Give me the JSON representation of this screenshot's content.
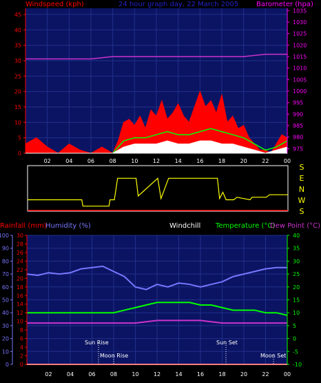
{
  "top": {
    "left_label": "Windspeed (kph)",
    "center_label": "24 hour graph day, 22 March 2005",
    "right_label": "Barometer (hpa)"
  },
  "bottom": {
    "rain_label": "Rainfall (mm)",
    "humidity_label": "Humidity (%)",
    "windchill_label": "Windchill",
    "temp_label": "Temperature (°C)",
    "dew_label": "Dew Point (°C)",
    "sun_rise": "Sun Rise",
    "moon_rise": "Moon Rise",
    "sun_set": "Sun Set",
    "moon_set": "Moon Set"
  },
  "hours": [
    "02",
    "04",
    "06",
    "08",
    "10",
    "12",
    "14",
    "16",
    "18",
    "20",
    "22",
    "00"
  ],
  "directions": [
    "S",
    "E",
    "N",
    "W",
    "S"
  ],
  "colors": {
    "windspeed": "#ff0000",
    "gust_green": "#00ff00",
    "avg_white": "#ffffff",
    "barometer": "#cc33cc",
    "direction": "#ffff00",
    "humidity": "#7777ff",
    "temperature": "#00ff00",
    "dewpoint": "#cc33cc",
    "rain": "#ff0000",
    "axis_left_top": "#ff0000",
    "axis_right_top": "#ff00ff",
    "axis_humidity": "#7777ff",
    "axis_rain": "#ff0000",
    "axis_temp": "#00ff00"
  },
  "chart_data": [
    {
      "type": "area",
      "title": "24 hour graph day, 22 March 2005",
      "x_label": "hour",
      "x_range": [
        0,
        24
      ],
      "y_left": {
        "label": "Windspeed (kph)",
        "range": [
          0,
          47
        ],
        "ticks": [
          0,
          5,
          10,
          15,
          20,
          25,
          30,
          35,
          40,
          45
        ]
      },
      "y_right": {
        "label": "Barometer (hpa)",
        "range": [
          973,
          1036
        ],
        "ticks": [
          975,
          980,
          985,
          990,
          995,
          1000,
          1005,
          1010,
          1015,
          1020,
          1025,
          1030,
          1035
        ]
      },
      "series": [
        {
          "name": "Windspeed (kph)",
          "hours": [
            0,
            1,
            2,
            3,
            4,
            5,
            6,
            7,
            7.5,
            8,
            8.5,
            9,
            9.5,
            10,
            10.5,
            11,
            11.5,
            12,
            12.5,
            13,
            13.5,
            14,
            14.5,
            15,
            15.5,
            16,
            16.5,
            17,
            17.5,
            18,
            18.5,
            19,
            19.5,
            20,
            20.5,
            21,
            21.5,
            22,
            22.5,
            23,
            23.5,
            24
          ],
          "values": [
            3,
            5,
            2,
            0,
            3,
            1,
            0,
            2,
            1,
            0,
            4,
            10,
            11,
            9,
            12,
            8,
            14,
            12,
            17,
            11,
            13,
            16,
            12,
            10,
            15,
            20,
            15,
            17,
            13,
            19,
            10,
            12,
            8,
            9,
            5,
            3,
            1,
            1,
            0,
            3,
            6,
            5
          ]
        },
        {
          "name": "Gust",
          "hours": [
            8,
            9,
            10,
            11,
            12,
            13,
            14,
            15,
            16,
            17,
            18,
            19,
            20,
            21,
            22,
            23,
            24
          ],
          "values": [
            0,
            4,
            5,
            5,
            6,
            7,
            6,
            6,
            7,
            8,
            7,
            6,
            5,
            3,
            1,
            2,
            4
          ]
        },
        {
          "name": "Average",
          "hours": [
            8,
            9,
            10,
            11,
            12,
            13,
            14,
            15,
            16,
            17,
            18,
            19,
            20,
            21,
            22,
            23,
            24
          ],
          "values": [
            0,
            2,
            3,
            3,
            3,
            4,
            3,
            3,
            4,
            4,
            3,
            3,
            2,
            1,
            0,
            1,
            2
          ]
        },
        {
          "name": "Barometer (hpa)",
          "hours": [
            0,
            2,
            4,
            6,
            8,
            10,
            12,
            14,
            16,
            18,
            20,
            22,
            24
          ],
          "values": [
            1014,
            1014,
            1014,
            1014,
            1015,
            1015,
            1015,
            1015,
            1015,
            1015,
            1015,
            1016,
            1016
          ]
        }
      ]
    },
    {
      "type": "line",
      "title": "Wind direction",
      "x_range": [
        0,
        24
      ],
      "y_categories": [
        "S",
        "E",
        "N",
        "W",
        "S"
      ],
      "series": [
        {
          "name": "Wind direction",
          "hours": [
            0,
            5,
            5.1,
            7.5,
            7.6,
            8,
            8.3,
            10,
            10.2,
            12,
            12.3,
            13,
            13.2,
            14.5,
            14.7,
            17.5,
            17.7,
            18,
            18.3,
            19,
            19.3,
            20.5,
            20.7,
            22,
            22.3,
            24
          ],
          "values": [
            90,
            90,
            40,
            40,
            90,
            90,
            260,
            260,
            120,
            260,
            100,
            260,
            260,
            260,
            260,
            260,
            100,
            150,
            90,
            90,
            110,
            90,
            110,
            110,
            130,
            130
          ]
        }
      ]
    },
    {
      "type": "line",
      "title": "Humidity / Temperature",
      "x_range": [
        0,
        24
      ],
      "y_left_rain": {
        "label": "Rainfall (mm)",
        "range": [
          0,
          30
        ],
        "ticks": [
          0,
          2,
          4,
          6,
          8,
          10,
          12,
          14,
          16,
          18,
          20,
          22,
          24,
          26,
          28,
          30
        ]
      },
      "y_left_humidity": {
        "label": "Humidity (%)",
        "range": [
          0,
          100
        ],
        "ticks": [
          0,
          10,
          20,
          30,
          40,
          50,
          60,
          70,
          80,
          90,
          100
        ]
      },
      "y_right": {
        "label": "Temperature (°C)",
        "range": [
          -10,
          40
        ],
        "ticks": [
          -10,
          -5,
          0,
          5,
          10,
          15,
          20,
          25,
          30,
          35,
          40
        ]
      },
      "series": [
        {
          "name": "Humidity (%)",
          "hours": [
            0,
            1,
            2,
            3,
            4,
            5,
            6,
            7,
            8,
            9,
            10,
            11,
            12,
            13,
            14,
            15,
            16,
            17,
            18,
            19,
            20,
            21,
            22,
            23,
            24
          ],
          "values": [
            70,
            69,
            71,
            70,
            71,
            74,
            75,
            76,
            72,
            68,
            60,
            58,
            62,
            60,
            63,
            62,
            60,
            62,
            64,
            68,
            70,
            72,
            74,
            75,
            75
          ]
        },
        {
          "name": "Temperature (°C)",
          "hours": [
            0,
            1,
            2,
            3,
            4,
            5,
            6,
            7,
            8,
            9,
            10,
            11,
            12,
            13,
            14,
            15,
            16,
            17,
            18,
            19,
            20,
            21,
            22,
            23,
            24
          ],
          "values": [
            10,
            10,
            10,
            10,
            10,
            10,
            10,
            10,
            10,
            11,
            12,
            13,
            14,
            14,
            14,
            14,
            13,
            13,
            12,
            11,
            11,
            11,
            10,
            10,
            9
          ]
        },
        {
          "name": "Dew Point (°C)",
          "hours": [
            0,
            2,
            4,
            6,
            8,
            10,
            12,
            14,
            16,
            18,
            20,
            22,
            24
          ],
          "values": [
            6,
            6,
            6,
            6,
            6,
            6,
            7,
            7,
            7,
            6,
            6,
            6,
            6
          ]
        },
        {
          "name": "Rainfall (mm)",
          "hours": [
            0,
            24
          ],
          "values": [
            0,
            0
          ]
        }
      ]
    }
  ]
}
